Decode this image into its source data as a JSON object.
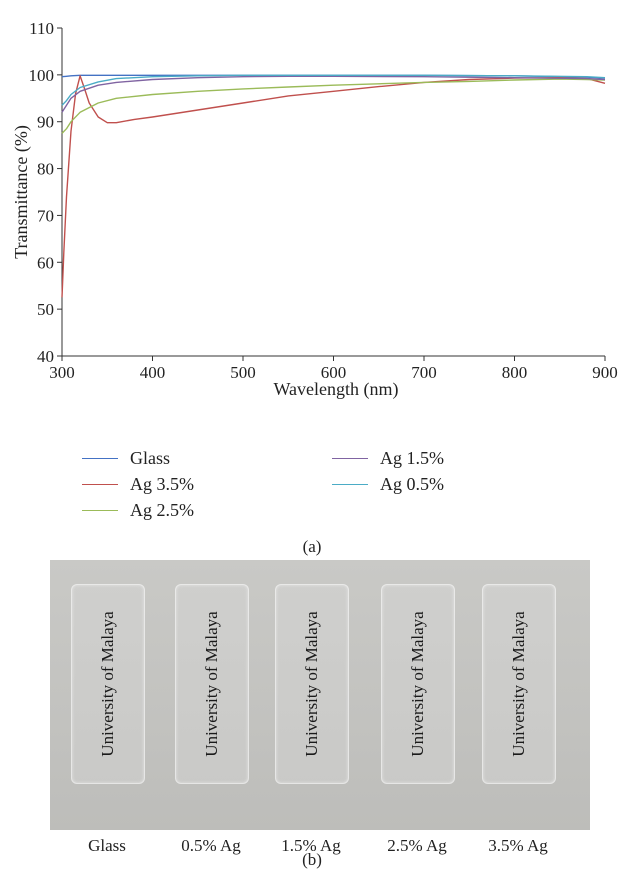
{
  "chart_data": {
    "type": "line",
    "xlabel": "Wavelength (nm)",
    "ylabel": "Transmittance (%)",
    "xlim": [
      300,
      900
    ],
    "ylim": [
      40,
      110
    ],
    "xticks": [
      "300",
      "400",
      "500",
      "600",
      "700",
      "800",
      "900"
    ],
    "yticks": [
      "40",
      "50",
      "60",
      "70",
      "80",
      "90",
      "100",
      "110"
    ],
    "grid": false,
    "legend_position": "bottom",
    "series": [
      {
        "name": "Glass",
        "color": "#4472c4",
        "x": [
          300,
          305,
          310,
          320,
          350,
          400,
          500,
          600,
          700,
          800,
          880,
          900
        ],
        "y": [
          99.6,
          99.7,
          99.8,
          99.9,
          99.9,
          99.9,
          99.9,
          99.9,
          99.9,
          99.8,
          99.5,
          99.3
        ]
      },
      {
        "name": "Ag 3.5%",
        "color": "#c0504d",
        "x": [
          300,
          302,
          305,
          310,
          315,
          320,
          325,
          330,
          340,
          350,
          360,
          380,
          400,
          450,
          500,
          550,
          600,
          650,
          700,
          750,
          800,
          850,
          880,
          900
        ],
        "y": [
          52.5,
          62,
          74,
          88,
          96,
          99.8,
          97,
          94,
          91,
          89.8,
          89.8,
          90.5,
          91,
          92.5,
          94,
          95.5,
          96.5,
          97.5,
          98.4,
          99,
          99.3,
          99.4,
          99.2,
          98.2
        ]
      },
      {
        "name": "Ag 2.5%",
        "color": "#9bbb59",
        "x": [
          300,
          305,
          310,
          320,
          340,
          360,
          400,
          450,
          500,
          550,
          600,
          650,
          700,
          750,
          800,
          850,
          880,
          900
        ],
        "y": [
          87.5,
          88.5,
          90,
          92,
          94,
          95,
          95.8,
          96.5,
          97,
          97.4,
          97.8,
          98.1,
          98.4,
          98.6,
          98.9,
          99.1,
          99,
          98.9
        ]
      },
      {
        "name": "Ag 1.5%",
        "color": "#8064a2",
        "x": [
          300,
          305,
          310,
          320,
          340,
          360,
          400,
          450,
          500,
          550,
          600,
          700,
          800,
          880,
          900
        ],
        "y": [
          92,
          93.5,
          95,
          96.5,
          97.8,
          98.4,
          99,
          99.4,
          99.6,
          99.7,
          99.7,
          99.6,
          99.4,
          99.2,
          99
        ]
      },
      {
        "name": "Ag 0.5%",
        "color": "#4bacc6",
        "x": [
          300,
          305,
          310,
          320,
          340,
          360,
          400,
          450,
          500,
          600,
          700,
          800,
          880,
          900
        ],
        "y": [
          93.5,
          94.5,
          95.8,
          97.3,
          98.5,
          99.2,
          99.6,
          99.8,
          99.9,
          99.9,
          99.9,
          99.8,
          99.6,
          99.4
        ]
      }
    ]
  },
  "captions": {
    "a": "(a)",
    "b": "(b)"
  },
  "photo": {
    "slide_text": "University of Malaya",
    "slides": [
      "Glass",
      "0.5% Ag",
      "1.5% Ag",
      "2.5% Ag",
      "3.5% Ag"
    ]
  }
}
